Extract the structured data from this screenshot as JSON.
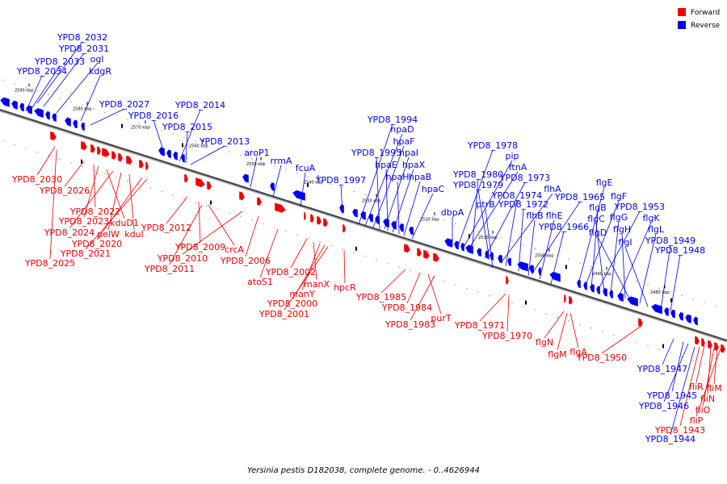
{
  "legend": {
    "forward": {
      "label": "Forward",
      "color": "#ee0000"
    },
    "reverse": {
      "label": "Reverse",
      "color": "#0000ee"
    }
  },
  "caption": "Yersinia pestis D182038, complete genome. - 0..4626944",
  "kbp_ticks": [
    "2590 kbp",
    "2580 kbp",
    "2570 kbp",
    "2560 kbp",
    "2550 kbp",
    "2540 kbp",
    "2530 kbp",
    "2520 kbp",
    "2510 kbp",
    "2500 kbp",
    "2490 kbp",
    "2480 kbp"
  ],
  "reverse_labels": [
    "YPD8_2032",
    "YPD8_2031",
    "YPD8_2033",
    "ogl",
    "YPD8_2034",
    "kdgR",
    "YPD8_2027",
    "YPD8_2016",
    "YPD8_2014",
    "YPD8_2015",
    "YPD8_2013",
    "aroP1",
    "rrmA",
    "fcuA",
    "YPD8_1997",
    "YPD8_1994",
    "hpaD",
    "hpaF",
    "YPD8_1995",
    "hpaI",
    "hpaE",
    "hpaX",
    "hpaH",
    "hpaB",
    "hpaC",
    "YPD8_1978",
    "pip",
    "ftnA",
    "YPD8_1980",
    "YPD8_1973",
    "YPD8_1979",
    "flhA",
    "dbpA",
    "YPD8_1974",
    "YPD8_1965",
    "ptrB",
    "YPD8_1972",
    "flhB",
    "flhE",
    "YPD8_1966",
    "flgE",
    "flgF",
    "flgB",
    "YPD8_1953",
    "flgC",
    "flgG",
    "flgK",
    "flgH",
    "flgD",
    "flgL",
    "flgI",
    "YPD8_1949",
    "YPD8_1948",
    "YPD8_1947",
    "YPD8_1945",
    "YPD8_1946",
    "YPD8_1944"
  ],
  "forward_labels": [
    "YPD8_2030",
    "YPD8_2026",
    "YPD8_2022",
    "YPD8_2023",
    "kduD1",
    "YPD8_2024",
    "pelW",
    "kduI",
    "YPD8_2020",
    "YPD8_2021",
    "YPD8_2025",
    "YPD8_2012",
    "YPD8_2009",
    "crcA",
    "YPD8_2010",
    "YPD8_2006",
    "YPD8_2011",
    "atoS1",
    "YPD8_2002",
    "manX",
    "manY",
    "YPD8_2000",
    "YPD8_2001",
    "hpcR",
    "YPD8_1985",
    "YPD8_1984",
    "purT",
    "YPD8_1983",
    "YPD8_1971",
    "YPD8_1970",
    "flgN",
    "flgA",
    "flgM",
    "YPD8_1950",
    "fliR",
    "fliM",
    "fliN",
    "fliO",
    "fliP",
    "YPD8_1943"
  ]
}
